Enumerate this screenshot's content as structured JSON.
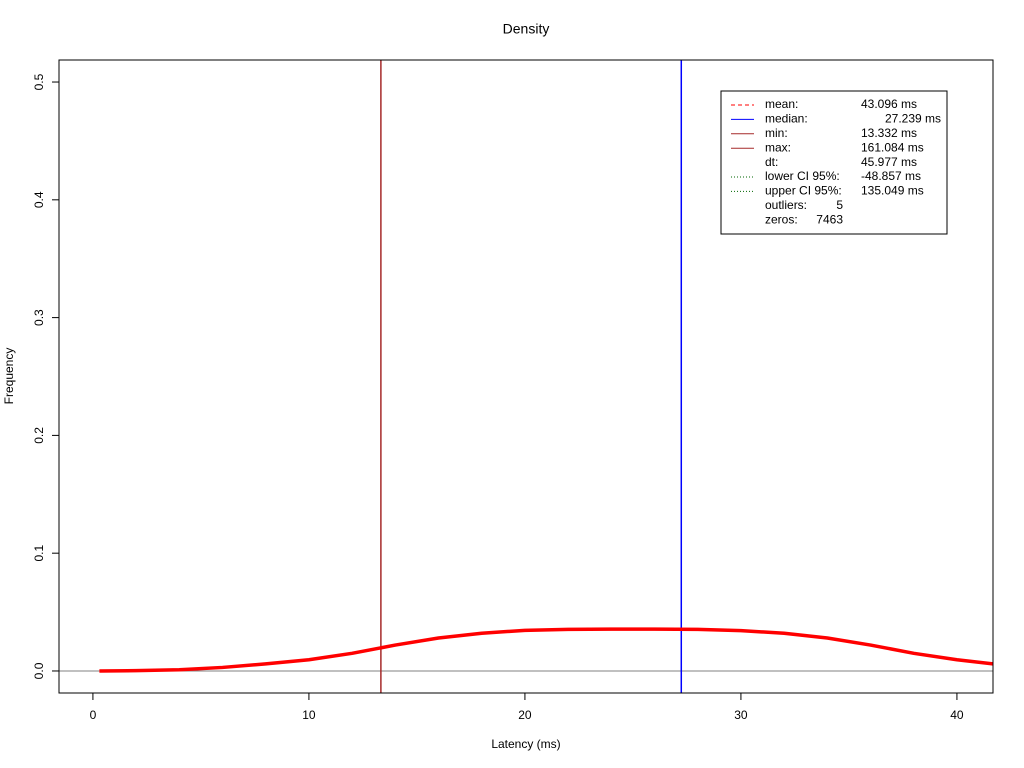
{
  "chart_data": {
    "type": "line",
    "title": "Density",
    "xlabel": "Latency (ms)",
    "ylabel": "Frequency",
    "x": [
      0.3,
      2,
      4,
      6,
      8,
      10,
      12,
      14,
      16,
      18,
      20,
      22,
      24,
      26,
      28,
      30,
      32,
      34,
      36,
      38,
      40,
      41.67
    ],
    "values": [
      0,
      0.0003,
      0.001,
      0.003,
      0.006,
      0.0095,
      0.015,
      0.022,
      0.028,
      0.032,
      0.0345,
      0.0353,
      0.0355,
      0.0355,
      0.0353,
      0.0343,
      0.032,
      0.028,
      0.022,
      0.015,
      0.0095,
      0.006
    ],
    "color": "#ff0000",
    "xlim": [
      -1.57,
      41.67
    ],
    "ylim": [
      -0.0187,
      0.5187
    ],
    "xticks": [
      0,
      10,
      20,
      30,
      40
    ],
    "yticks": [
      {
        "value": 0,
        "label": "0.0"
      },
      0.1,
      0.2,
      0.3,
      0.4,
      0.5
    ],
    "hline": 0,
    "legend": {
      "position": "top-right",
      "items": [
        {
          "label": "mean:",
          "value": 43.096,
          "value_label": "43.096 ms",
          "color": "#ff0000",
          "dash": "dashed"
        },
        {
          "label": "median:",
          "value": 27.239,
          "value_label": "27.239 ms",
          "color": "#0000ff",
          "dash": "solid"
        },
        {
          "label": "min:",
          "value": 13.332,
          "value_label": "13.332 ms",
          "color": "#a52a2a",
          "dash": "solid"
        },
        {
          "label": "max:",
          "value": 161.084,
          "value_label": "161.084 ms",
          "color": "#a52a2a",
          "dash": "solid"
        },
        {
          "label": "dt:",
          "value": 45.977,
          "value_label": "45.977 ms"
        },
        {
          "label": "lower CI 95%:",
          "value": -48.857,
          "value_label": "-48.857 ms",
          "color": "#006400",
          "dash": "dotted"
        },
        {
          "label": "upper CI 95%:",
          "value": 135.049,
          "value_label": "135.049 ms",
          "color": "#006400",
          "dash": "dotted"
        },
        {
          "label": "outliers:",
          "value": 5
        },
        {
          "label": "zeros:",
          "value": 7463
        }
      ]
    }
  }
}
